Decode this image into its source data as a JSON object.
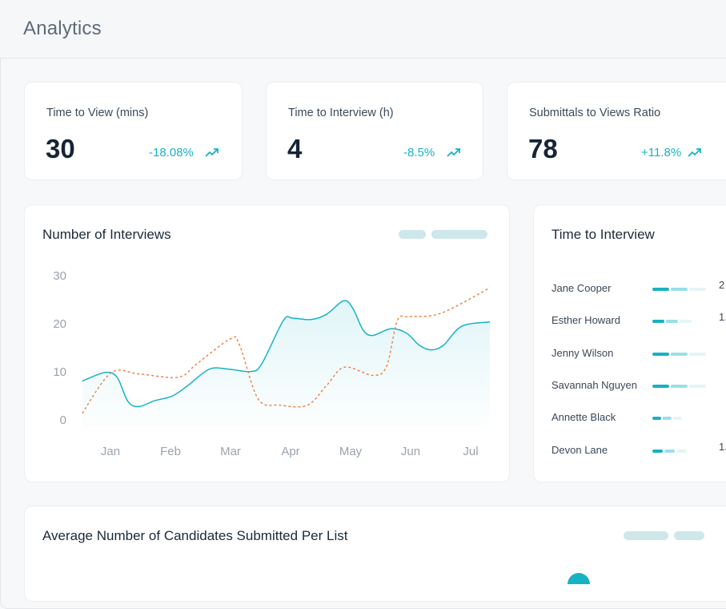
{
  "header": {
    "title": "Analytics"
  },
  "kpis": [
    {
      "label": "Time to View (mins)",
      "value": "30",
      "change": "-18.08%",
      "icon": "trend-up-icon"
    },
    {
      "label": "Time to Interview (h)",
      "value": "4",
      "change": "-8.5%",
      "icon": "trend-up-icon"
    },
    {
      "label": "Submittals to Views Ratio",
      "value": "78",
      "change": "+11.8%",
      "icon": "trend-up-icon"
    }
  ],
  "interviews": {
    "title": "Number of Interviews"
  },
  "time_to_interview": {
    "title": "Time to Interview",
    "rows": [
      {
        "name": "Jane Cooper",
        "bars": [
          1,
          1,
          1
        ],
        "value": "2"
      },
      {
        "name": "Esther Howard",
        "bars": [
          0.7,
          0.7,
          0.7
        ],
        "value": "1."
      },
      {
        "name": "Jenny Wilson",
        "bars": [
          1,
          1,
          1
        ],
        "value": ""
      },
      {
        "name": "Savannah Nguyen",
        "bars": [
          1,
          1,
          1
        ],
        "value": ""
      },
      {
        "name": "Annette Black",
        "bars": [
          0.5,
          0.5,
          0.5
        ],
        "value": ""
      },
      {
        "name": "Devon Lane",
        "bars": [
          0.6,
          0.6,
          0.6
        ],
        "value": "1."
      }
    ]
  },
  "avg_candidates": {
    "title": "Average Number of Candidates Submitted Per List"
  },
  "colors": {
    "teal": "#17b2c4",
    "orange": "#f07c3c",
    "pill": "#cde7ea"
  },
  "chart_data": {
    "type": "line",
    "categories": [
      "Jan",
      "Feb",
      "Mar",
      "Apr",
      "May",
      "Jun",
      "Jul"
    ],
    "ylim": [
      0,
      30
    ],
    "yticks": [
      "0",
      "10",
      "20",
      "30"
    ],
    "grid": false,
    "series": [
      {
        "style": "solid-area",
        "color": "#17b2c4",
        "points": [
          [
            0.53,
            8.4
          ],
          [
            0.91,
            10.2
          ],
          [
            1.11,
            9.2
          ],
          [
            1.29,
            4.2
          ],
          [
            1.47,
            3.1
          ],
          [
            1.73,
            4.3
          ],
          [
            2.03,
            5.3
          ],
          [
            2.29,
            7.5
          ],
          [
            2.65,
            10.9
          ],
          [
            2.96,
            10.9
          ],
          [
            3.34,
            10.4
          ],
          [
            3.52,
            12
          ],
          [
            3.88,
            21
          ],
          [
            4.03,
            21.5
          ],
          [
            4.34,
            21.2
          ],
          [
            4.6,
            22.3
          ],
          [
            4.88,
            25.1
          ],
          [
            5.03,
            23.7
          ],
          [
            5.21,
            19
          ],
          [
            5.37,
            17.9
          ],
          [
            5.67,
            19.3
          ],
          [
            5.93,
            18.4
          ],
          [
            6.14,
            15.9
          ],
          [
            6.34,
            14.9
          ],
          [
            6.55,
            15.9
          ],
          [
            6.85,
            19.8
          ],
          [
            7.32,
            20.7
          ]
        ]
      },
      {
        "style": "dashed",
        "color": "#f07c3c",
        "points": [
          [
            0.53,
            1.7
          ],
          [
            1.01,
            10.1
          ],
          [
            1.47,
            9.9
          ],
          [
            2.13,
            9.2
          ],
          [
            2.44,
            12
          ],
          [
            3.0,
            17.2
          ],
          [
            3.15,
            15.9
          ],
          [
            3.46,
            4.7
          ],
          [
            3.82,
            3.4
          ],
          [
            4.28,
            3.4
          ],
          [
            4.6,
            7.5
          ],
          [
            4.9,
            11.3
          ],
          [
            5.37,
            9.6
          ],
          [
            5.6,
            11.5
          ],
          [
            5.78,
            21
          ],
          [
            5.98,
            21.8
          ],
          [
            6.5,
            22.5
          ],
          [
            7.32,
            27.8
          ]
        ]
      }
    ]
  }
}
